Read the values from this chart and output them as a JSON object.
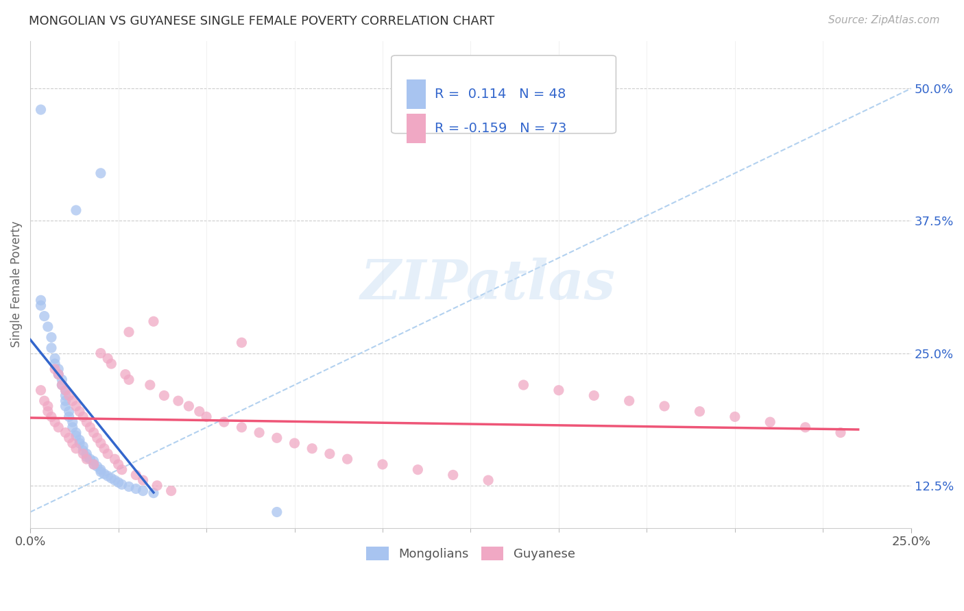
{
  "title": "MONGOLIAN VS GUYANESE SINGLE FEMALE POVERTY CORRELATION CHART",
  "source": "Source: ZipAtlas.com",
  "ylabel": "Single Female Poverty",
  "ytick_labels": [
    "12.5%",
    "25.0%",
    "37.5%",
    "50.0%"
  ],
  "ytick_values": [
    0.125,
    0.25,
    0.375,
    0.5
  ],
  "xmin": 0.0,
  "xmax": 0.25,
  "ymin": 0.085,
  "ymax": 0.545,
  "mongolian_color": "#a8c4f0",
  "guyanese_color": "#f0a8c4",
  "mongolian_line_color": "#3366cc",
  "guyanese_line_color": "#ee5577",
  "diagonal_color": "#aaccee",
  "background_color": "#ffffff",
  "plot_bg_color": "#ffffff",
  "watermark": "ZIPatlas",
  "legend_box_color": "#dddddd",
  "legend_text_color": "#3366cc",
  "source_color": "#aaaaaa",
  "title_color": "#333333",
  "ytick_color": "#3366cc",
  "grid_color": "#e8e8e8",
  "mongolian_x": [
    0.003,
    0.02,
    0.013,
    0.003,
    0.003,
    0.004,
    0.005,
    0.006,
    0.006,
    0.007,
    0.007,
    0.008,
    0.008,
    0.009,
    0.009,
    0.01,
    0.01,
    0.01,
    0.01,
    0.011,
    0.011,
    0.012,
    0.012,
    0.013,
    0.013,
    0.014,
    0.014,
    0.015,
    0.015,
    0.016,
    0.016,
    0.017,
    0.018,
    0.018,
    0.019,
    0.02,
    0.02,
    0.021,
    0.022,
    0.023,
    0.024,
    0.025,
    0.026,
    0.028,
    0.03,
    0.032,
    0.035,
    0.07
  ],
  "mongolian_y": [
    0.48,
    0.42,
    0.385,
    0.3,
    0.295,
    0.285,
    0.275,
    0.265,
    0.255,
    0.245,
    0.24,
    0.235,
    0.23,
    0.225,
    0.22,
    0.215,
    0.21,
    0.205,
    0.2,
    0.195,
    0.19,
    0.185,
    0.18,
    0.175,
    0.172,
    0.168,
    0.165,
    0.162,
    0.158,
    0.155,
    0.152,
    0.15,
    0.148,
    0.145,
    0.143,
    0.14,
    0.138,
    0.136,
    0.134,
    0.132,
    0.13,
    0.128,
    0.126,
    0.124,
    0.122,
    0.12,
    0.118,
    0.1
  ],
  "guyanese_x": [
    0.003,
    0.004,
    0.005,
    0.005,
    0.006,
    0.007,
    0.007,
    0.008,
    0.008,
    0.009,
    0.01,
    0.01,
    0.011,
    0.011,
    0.012,
    0.012,
    0.013,
    0.013,
    0.014,
    0.015,
    0.015,
    0.016,
    0.016,
    0.017,
    0.018,
    0.018,
    0.019,
    0.02,
    0.02,
    0.021,
    0.022,
    0.022,
    0.023,
    0.024,
    0.025,
    0.026,
    0.027,
    0.028,
    0.03,
    0.032,
    0.034,
    0.036,
    0.038,
    0.04,
    0.042,
    0.045,
    0.048,
    0.05,
    0.055,
    0.06,
    0.065,
    0.07,
    0.075,
    0.08,
    0.085,
    0.09,
    0.1,
    0.11,
    0.12,
    0.13,
    0.14,
    0.15,
    0.16,
    0.17,
    0.18,
    0.19,
    0.2,
    0.21,
    0.22,
    0.23,
    0.035,
    0.028,
    0.06
  ],
  "guyanese_y": [
    0.215,
    0.205,
    0.2,
    0.195,
    0.19,
    0.185,
    0.235,
    0.23,
    0.18,
    0.22,
    0.215,
    0.175,
    0.21,
    0.17,
    0.205,
    0.165,
    0.2,
    0.16,
    0.195,
    0.19,
    0.155,
    0.185,
    0.15,
    0.18,
    0.175,
    0.145,
    0.17,
    0.25,
    0.165,
    0.16,
    0.245,
    0.155,
    0.24,
    0.15,
    0.145,
    0.14,
    0.23,
    0.225,
    0.135,
    0.13,
    0.22,
    0.125,
    0.21,
    0.12,
    0.205,
    0.2,
    0.195,
    0.19,
    0.185,
    0.18,
    0.175,
    0.17,
    0.165,
    0.16,
    0.155,
    0.15,
    0.145,
    0.14,
    0.135,
    0.13,
    0.22,
    0.215,
    0.21,
    0.205,
    0.2,
    0.195,
    0.19,
    0.185,
    0.18,
    0.175,
    0.28,
    0.27,
    0.26
  ]
}
